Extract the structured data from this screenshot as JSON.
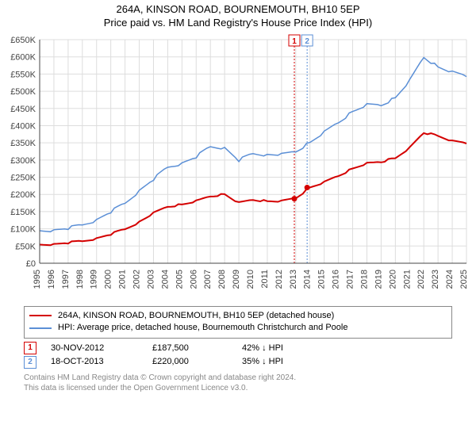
{
  "title": "264A, KINSON ROAD, BOURNEMOUTH, BH10 5EP",
  "subtitle": "Price paid vs. HM Land Registry's House Price Index (HPI)",
  "chart": {
    "type": "line",
    "background_color": "#ffffff",
    "grid_color": "#dddddd",
    "axis_color": "#444444",
    "label_fontsize": 11,
    "x_years": [
      1995,
      1996,
      1997,
      1998,
      1999,
      2000,
      2001,
      2002,
      2003,
      2004,
      2005,
      2006,
      2007,
      2008,
      2009,
      2010,
      2011,
      2012,
      2013,
      2014,
      2015,
      2016,
      2017,
      2018,
      2019,
      2020,
      2021,
      2022,
      2023,
      2024,
      2025
    ],
    "ylim": [
      0,
      650000
    ],
    "ytick_step": 50000,
    "ytick_labels": [
      "£0",
      "£50K",
      "£100K",
      "£150K",
      "£200K",
      "£250K",
      "£300K",
      "£350K",
      "£400K",
      "£450K",
      "£500K",
      "£550K",
      "£600K",
      "£650K"
    ],
    "series": [
      {
        "id": "property",
        "label": "264A, KINSON ROAD, BOURNEMOUTH, BH10 5EP (detached house)",
        "color": "#d40000",
        "line_width": 2,
        "values_by_year": {
          "1995": 55000,
          "1996": 55000,
          "1997": 60000,
          "1998": 65000,
          "1999": 72000,
          "2000": 85000,
          "2001": 100000,
          "2002": 120000,
          "2003": 145000,
          "2004": 165000,
          "2005": 170000,
          "2006": 180000,
          "2007": 195000,
          "2008": 200000,
          "2009": 175000,
          "2010": 185000,
          "2011": 180000,
          "2012": 180000,
          "2013": 190000,
          "2014": 220000,
          "2015": 235000,
          "2016": 255000,
          "2017": 275000,
          "2018": 290000,
          "2019": 295000,
          "2020": 305000,
          "2021": 335000,
          "2022": 380000,
          "2023": 370000,
          "2024": 355000,
          "2025": 350000
        }
      },
      {
        "id": "hpi",
        "label": "HPI: Average price, detached house, Bournemouth Christchurch and Poole",
        "color": "#5b8fd6",
        "line_width": 1.5,
        "values_by_year": {
          "1995": 95000,
          "1996": 95000,
          "1997": 102000,
          "1998": 112000,
          "1999": 125000,
          "2000": 150000,
          "2001": 175000,
          "2002": 210000,
          "2003": 245000,
          "2004": 280000,
          "2005": 290000,
          "2006": 310000,
          "2007": 340000,
          "2008": 335000,
          "2009": 300000,
          "2010": 320000,
          "2011": 315000,
          "2012": 315000,
          "2013": 325000,
          "2014": 350000,
          "2015": 380000,
          "2016": 410000,
          "2017": 440000,
          "2018": 460000,
          "2019": 460000,
          "2020": 480000,
          "2021": 530000,
          "2022": 600000,
          "2023": 570000,
          "2024": 555000,
          "2025": 545000
        }
      }
    ],
    "sale_markers": [
      {
        "n": "1",
        "year": 2012.9,
        "price": 187500,
        "color": "#d40000"
      },
      {
        "n": "2",
        "year": 2013.8,
        "price": 220000,
        "color": "#5b8fd6"
      }
    ]
  },
  "legend": {
    "items": [
      {
        "label": "264A, KINSON ROAD, BOURNEMOUTH, BH10 5EP (detached house)",
        "color": "#d40000"
      },
      {
        "label": "HPI: Average price, detached house, Bournemouth Christchurch and Poole",
        "color": "#5b8fd6"
      }
    ]
  },
  "sales": [
    {
      "n": "1",
      "color": "#d40000",
      "date": "30-NOV-2012",
      "price": "£187,500",
      "delta_hpi": "42% ↓ HPI",
      "delta_prev": ""
    },
    {
      "n": "2",
      "color": "#5b8fd6",
      "date": "18-OCT-2013",
      "price": "£220,000",
      "delta_hpi": "35% ↓ HPI",
      "delta_prev": ""
    }
  ],
  "footer": {
    "line1": "Contains HM Land Registry data © Crown copyright and database right 2024.",
    "line2": "This data is licensed under the Open Government Licence v3.0."
  }
}
